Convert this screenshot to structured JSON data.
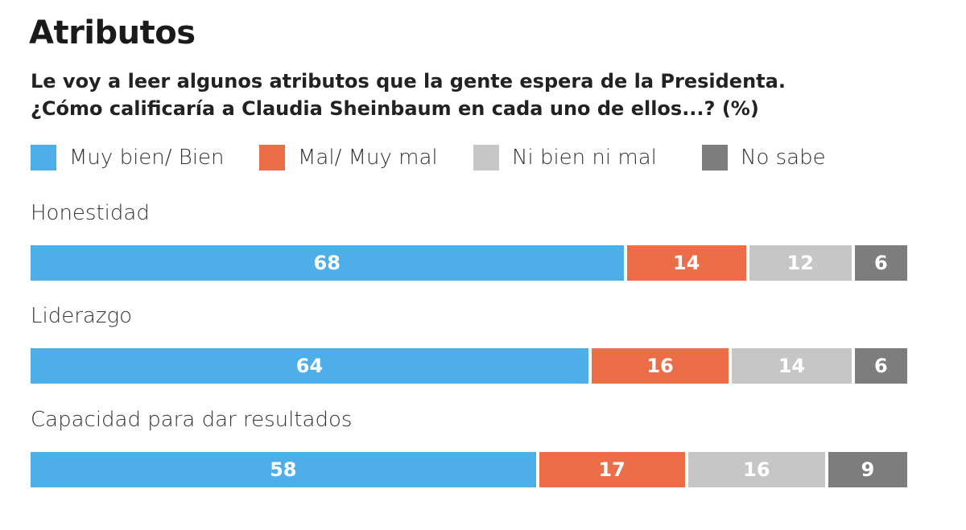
{
  "chart_data": {
    "type": "bar",
    "orientation": "horizontal",
    "stacked": true,
    "title": "Atributos",
    "subtitle": [
      "Le voy a leer algunos atributos que la gente espera de la Presidenta.",
      "¿Cómo calificaría a Claudia Sheinbaum en cada uno de ellos...? (%)"
    ],
    "categories": [
      "Honestidad",
      "Liderazgo",
      "Capacidad para dar resultados"
    ],
    "series": [
      {
        "name": "Muy bien/ Bien",
        "color": "#4daee8",
        "values": [
          68,
          64,
          58
        ]
      },
      {
        "name": "Mal/ Muy mal",
        "color": "#ec6e48",
        "values": [
          14,
          16,
          17
        ]
      },
      {
        "name": "Ni bien ni mal",
        "color": "#c6c6c6",
        "values": [
          12,
          14,
          16
        ]
      },
      {
        "name": "No sabe",
        "color": "#7d7d7d",
        "values": [
          6,
          6,
          9
        ]
      }
    ],
    "xlim": [
      0,
      100
    ],
    "legend": "top",
    "grid": false
  }
}
